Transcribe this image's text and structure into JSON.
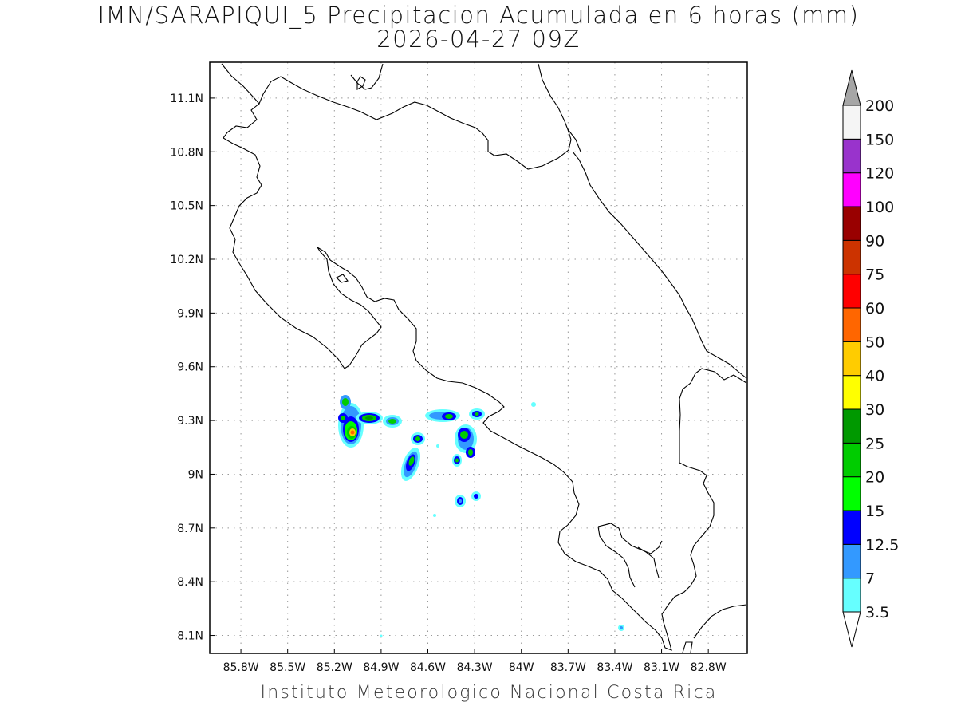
{
  "title": {
    "line1": "IMN/SARAPIQUI_5 Precipitacion Acumulada en 6 horas (mm)",
    "line2": "2026-04-27 09Z"
  },
  "footer": "Instituto Meteorologico Nacional Costa Rica",
  "map": {
    "lon_range": [
      -86.0,
      -82.55
    ],
    "lat_range": [
      8.0,
      11.3
    ],
    "lon_ticks": [
      {
        "value": -85.8,
        "label": "85.8W"
      },
      {
        "value": -85.5,
        "label": "85.5W"
      },
      {
        "value": -85.2,
        "label": "85.2W"
      },
      {
        "value": -84.9,
        "label": "84.9W"
      },
      {
        "value": -84.6,
        "label": "84.6W"
      },
      {
        "value": -84.3,
        "label": "84.3W"
      },
      {
        "value": -84.0,
        "label": "84W"
      },
      {
        "value": -83.7,
        "label": "83.7W"
      },
      {
        "value": -83.4,
        "label": "83.4W"
      },
      {
        "value": -83.1,
        "label": "83.1W"
      },
      {
        "value": -82.8,
        "label": "82.8W"
      }
    ],
    "lat_ticks": [
      {
        "value": 11.1,
        "label": "11.1N"
      },
      {
        "value": 10.8,
        "label": "10.8N"
      },
      {
        "value": 10.5,
        "label": "10.5N"
      },
      {
        "value": 10.2,
        "label": "10.2N"
      },
      {
        "value": 9.9,
        "label": "9.9N"
      },
      {
        "value": 9.6,
        "label": "9.6N"
      },
      {
        "value": 9.3,
        "label": "9.3N"
      },
      {
        "value": 9.0,
        "label": "9N"
      },
      {
        "value": 8.7,
        "label": "8.7N"
      },
      {
        "value": 8.4,
        "label": "8.4N"
      },
      {
        "value": 8.1,
        "label": "8.1N"
      }
    ],
    "grid": true
  },
  "colorbar": {
    "levels": [
      "3.5",
      "7",
      "12.5",
      "15",
      "20",
      "25",
      "30",
      "40",
      "50",
      "60",
      "75",
      "90",
      "100",
      "120",
      "150",
      "200"
    ],
    "colors": [
      "#66ffff",
      "#3399ff",
      "#0000ff",
      "#00ff00",
      "#00cc00",
      "#009900",
      "#ffff00",
      "#ffcc00",
      "#ff6600",
      "#ff0000",
      "#cc3300",
      "#990000",
      "#ff00ff",
      "#9933cc",
      "#f5f5f5"
    ],
    "under_color": "#ffffff",
    "over_color": "#a6a6a6"
  }
}
